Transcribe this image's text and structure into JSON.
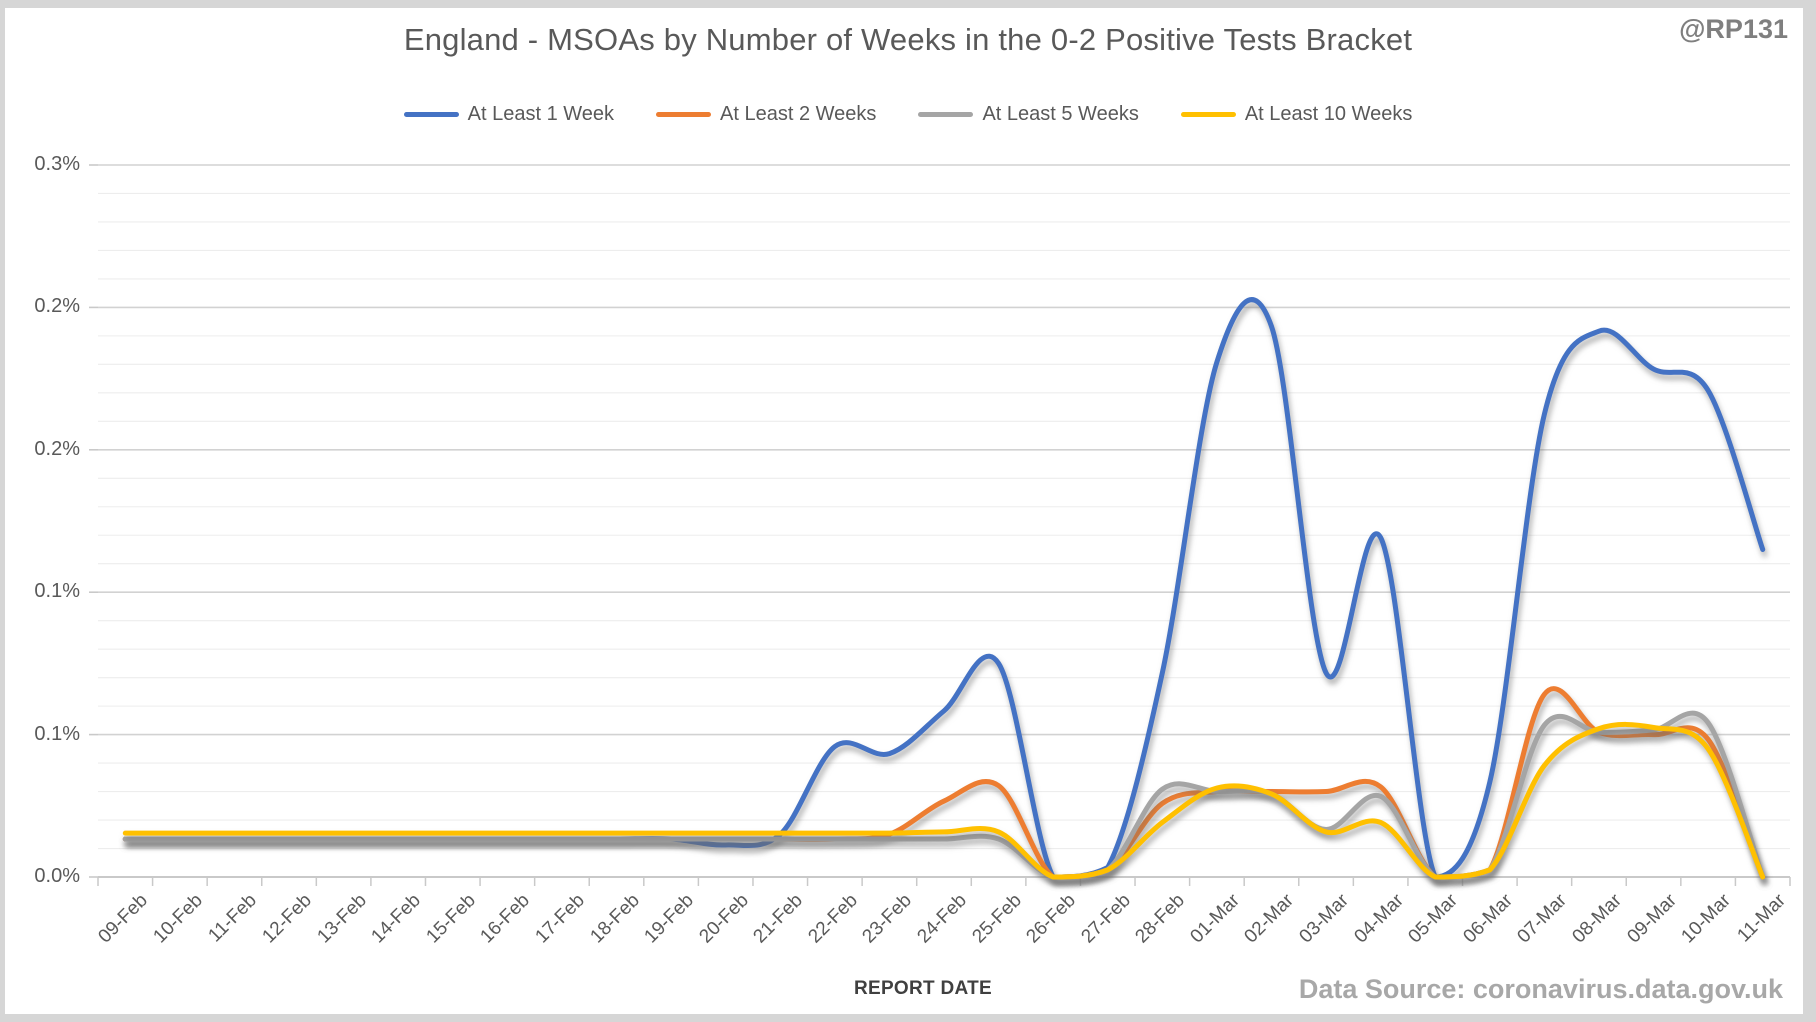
{
  "badge": "@RP131",
  "footer": {
    "data_source": "Data Source: coronavirus.data.gov.uk"
  },
  "chart_data": {
    "type": "line",
    "title": "England - MSOAs by Number of Weeks in the 0-2 Positive Tests Bracket",
    "xlabel": "REPORT DATE",
    "ylabel": "",
    "legend_position": "top",
    "grid": "horizontal major and minor gridlines",
    "line_style": "smoothed with drop shadow",
    "ylim": [
      0,
      0.3
    ],
    "y_major_step": 0.06,
    "y_minor_step": 0.012,
    "y_ticks": [
      {
        "value": 0.3,
        "label": "0.3%"
      },
      {
        "value": 0.24,
        "label": "0.2%"
      },
      {
        "value": 0.18,
        "label": "0.2%"
      },
      {
        "value": 0.12,
        "label": "0.1%"
      },
      {
        "value": 0.06,
        "label": "0.1%"
      },
      {
        "value": 0.0,
        "label": "0.0%"
      }
    ],
    "categories": [
      "09-Feb",
      "10-Feb",
      "11-Feb",
      "12-Feb",
      "13-Feb",
      "14-Feb",
      "15-Feb",
      "16-Feb",
      "17-Feb",
      "18-Feb",
      "19-Feb",
      "20-Feb",
      "21-Feb",
      "22-Feb",
      "23-Feb",
      "24-Feb",
      "25-Feb",
      "26-Feb",
      "27-Feb",
      "28-Feb",
      "01-Mar",
      "02-Mar",
      "03-Mar",
      "04-Mar",
      "05-Mar",
      "06-Mar",
      "07-Mar",
      "08-Mar",
      "09-Mar",
      "10-Mar",
      "11-Mar"
    ],
    "unit": "percent of MSOAs",
    "series": [
      {
        "name": "At Least 1 Week",
        "color": "#4472C4",
        "values": [
          0.016,
          0.016,
          0.016,
          0.016,
          0.016,
          0.016,
          0.016,
          0.016,
          0.016,
          0.016,
          0.016,
          0.0135,
          0.018,
          0.055,
          0.052,
          0.07,
          0.09,
          0.0,
          0.004,
          0.086,
          0.217,
          0.232,
          0.086,
          0.143,
          0.0,
          0.04,
          0.195,
          0.23,
          0.214,
          0.205,
          0.138
        ]
      },
      {
        "name": "At Least 2 Weeks",
        "color": "#ED7D31",
        "values": [
          0.016,
          0.016,
          0.016,
          0.016,
          0.016,
          0.016,
          0.016,
          0.016,
          0.016,
          0.016,
          0.016,
          0.016,
          0.016,
          0.016,
          0.018,
          0.032,
          0.0385,
          0.0,
          0.003,
          0.031,
          0.036,
          0.036,
          0.036,
          0.038,
          0.0,
          0.003,
          0.077,
          0.061,
          0.06,
          0.058,
          0.0
        ]
      },
      {
        "name": "At Least 5 Weeks",
        "color": "#A5A5A5",
        "values": [
          0.016,
          0.016,
          0.016,
          0.016,
          0.016,
          0.016,
          0.016,
          0.016,
          0.016,
          0.016,
          0.016,
          0.016,
          0.016,
          0.016,
          0.016,
          0.016,
          0.016,
          0.0,
          0.003,
          0.037,
          0.036,
          0.035,
          0.02,
          0.034,
          0.0,
          0.003,
          0.064,
          0.061,
          0.062,
          0.065,
          0.0
        ]
      },
      {
        "name": "At Least 10 Weeks",
        "color": "#FFC000",
        "values": [
          0.0185,
          0.0185,
          0.0185,
          0.0185,
          0.0185,
          0.0185,
          0.0185,
          0.0185,
          0.0185,
          0.0185,
          0.0185,
          0.0185,
          0.0185,
          0.0185,
          0.0185,
          0.019,
          0.019,
          0.0,
          0.003,
          0.023,
          0.0375,
          0.035,
          0.019,
          0.023,
          0.0,
          0.003,
          0.047,
          0.0625,
          0.063,
          0.054,
          0.0
        ]
      }
    ]
  }
}
